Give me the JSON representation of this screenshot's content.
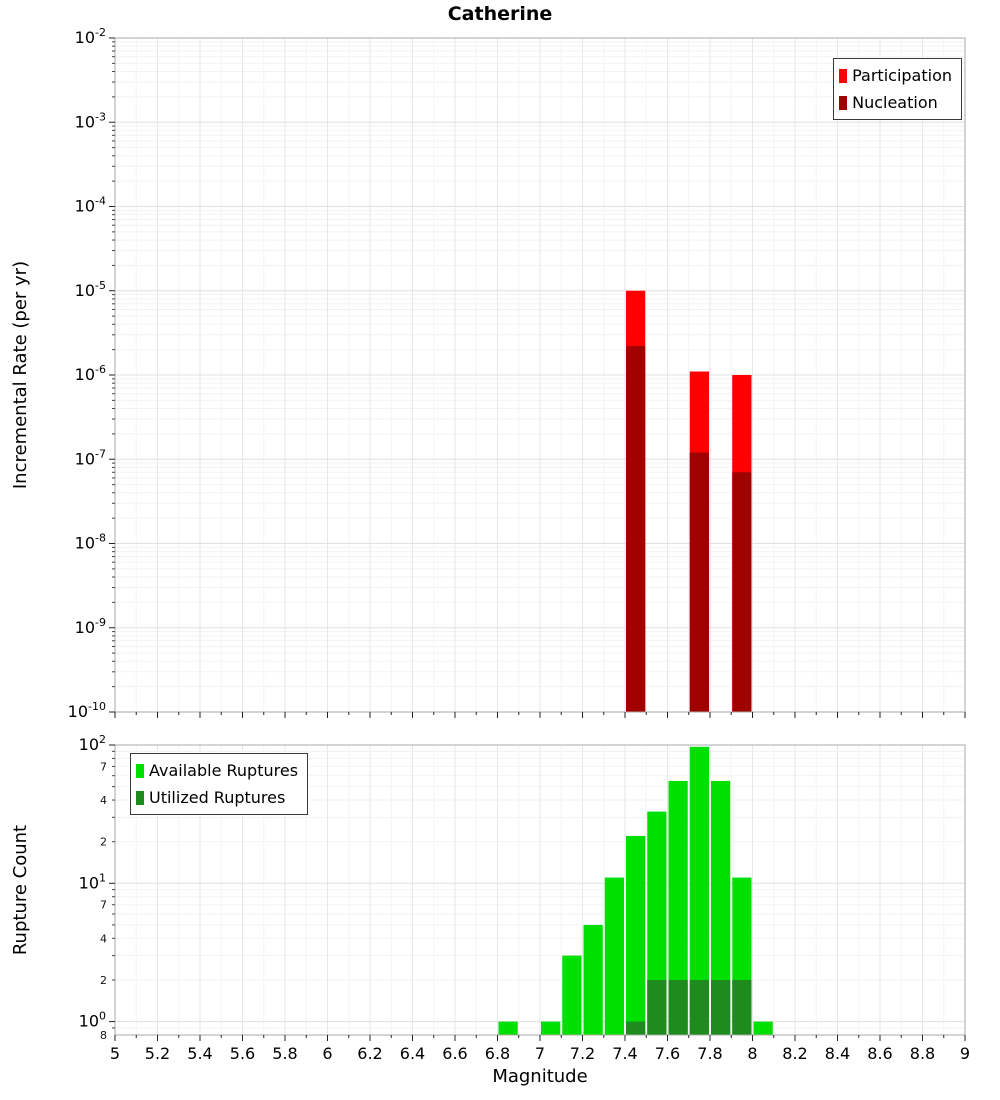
{
  "title": "Catherine",
  "colors": {
    "participation": "#ff0000",
    "nucleation": "#a00000",
    "available": "#00e000",
    "utilized": "#1e8b1e"
  },
  "chart_data": [
    {
      "type": "bar",
      "panel": "incremental-rate",
      "title": "Catherine",
      "xlabel": "",
      "ylabel": "Incremental Rate (per yr)",
      "yscale": "log",
      "xscale": "linear",
      "ylim": [
        1e-10,
        0.01
      ],
      "xlim": [
        5,
        9
      ],
      "bin_width": 0.1,
      "grid": true,
      "legend_position": "top-right",
      "series": [
        {
          "name": "Participation",
          "color_key": "participation",
          "x": [
            7.45,
            7.75,
            7.95
          ],
          "values": [
            1e-05,
            1.1e-06,
            1e-06
          ]
        },
        {
          "name": "Nucleation",
          "color_key": "nucleation",
          "x": [
            7.45,
            7.75,
            7.95
          ],
          "values": [
            2.2e-06,
            1.2e-07,
            7e-08
          ]
        }
      ]
    },
    {
      "type": "bar",
      "panel": "rupture-count",
      "xlabel": "Magnitude",
      "ylabel": "Rupture Count",
      "yscale": "log",
      "xscale": "linear",
      "ylim": [
        0.8,
        100
      ],
      "xlim": [
        5,
        9
      ],
      "bin_width": 0.1,
      "grid": true,
      "legend_position": "top-left",
      "series": [
        {
          "name": "Available Ruptures",
          "color_key": "available",
          "x": [
            6.85,
            7.05,
            7.15,
            7.25,
            7.35,
            7.45,
            7.55,
            7.65,
            7.75,
            7.85,
            7.95,
            8.05
          ],
          "values": [
            1,
            1,
            3,
            5,
            11,
            22,
            33,
            55,
            97,
            55,
            11,
            1
          ]
        },
        {
          "name": "Utilized Ruptures",
          "color_key": "utilized",
          "x": [
            7.45,
            7.55,
            7.65,
            7.75,
            7.85,
            7.95
          ],
          "values": [
            1,
            2,
            2,
            2,
            2,
            2
          ]
        }
      ]
    }
  ],
  "axes": {
    "x_ticks": [
      {
        "v": 5,
        "t": "5"
      },
      {
        "v": 5.2,
        "t": "5.2"
      },
      {
        "v": 5.4,
        "t": "5.4"
      },
      {
        "v": 5.6,
        "t": "5.6"
      },
      {
        "v": 5.8,
        "t": "5.8"
      },
      {
        "v": 6,
        "t": "6"
      },
      {
        "v": 6.2,
        "t": "6.2"
      },
      {
        "v": 6.4,
        "t": "6.4"
      },
      {
        "v": 6.6,
        "t": "6.6"
      },
      {
        "v": 6.8,
        "t": "6.8"
      },
      {
        "v": 7,
        "t": "7"
      },
      {
        "v": 7.2,
        "t": "7.2"
      },
      {
        "v": 7.4,
        "t": "7.4"
      },
      {
        "v": 7.6,
        "t": "7.6"
      },
      {
        "v": 7.8,
        "t": "7.8"
      },
      {
        "v": 8,
        "t": "8"
      },
      {
        "v": 8.2,
        "t": "8.2"
      },
      {
        "v": 8.4,
        "t": "8.4"
      },
      {
        "v": 8.6,
        "t": "8.6"
      },
      {
        "v": 8.8,
        "t": "8.8"
      },
      {
        "v": 9,
        "t": "9"
      }
    ],
    "rate_y_ticks": [
      {
        "v": 0.01,
        "t": "10^-2"
      },
      {
        "v": 0.001,
        "t": "10^-3"
      },
      {
        "v": 0.0001,
        "t": "10^-4"
      },
      {
        "v": 1e-05,
        "t": "10^-5"
      },
      {
        "v": 1e-06,
        "t": "10^-6"
      },
      {
        "v": 1e-07,
        "t": "10^-7"
      },
      {
        "v": 1e-08,
        "t": "10^-8"
      },
      {
        "v": 1e-09,
        "t": "10^-9"
      },
      {
        "v": 1e-10,
        "t": "10^-10"
      }
    ],
    "count_y_ticks": [
      {
        "v": 100,
        "t": "10^2"
      },
      {
        "v": 10,
        "t": "10^1"
      },
      {
        "v": 1,
        "t": "10^0"
      }
    ],
    "count_y_minor_labels": [
      {
        "v": 70,
        "t": "7"
      },
      {
        "v": 40,
        "t": "4"
      },
      {
        "v": 20,
        "t": "2"
      },
      {
        "v": 7,
        "t": "7"
      },
      {
        "v": 4,
        "t": "4"
      },
      {
        "v": 2,
        "t": "2"
      },
      {
        "v": 0.8,
        "t": "8"
      }
    ]
  }
}
